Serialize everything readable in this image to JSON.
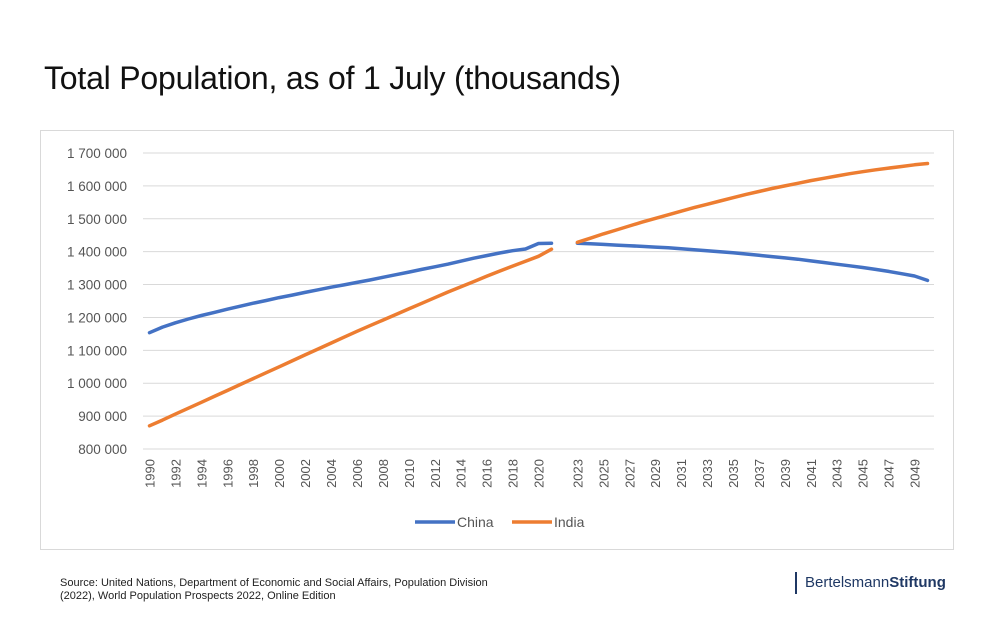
{
  "title": "Total Population, as of 1 July (thousands)",
  "source": {
    "line1": "Source: United Nations, Department of Economic and Social Affairs, Population Division",
    "line2": "(2022), World Population Prospects 2022, Online Edition"
  },
  "brand": {
    "part1": "Bertelsmann",
    "part2": "Stiftung"
  },
  "chart_data": {
    "type": "line",
    "title": "Total Population, as of 1 July (thousands)",
    "xlabel": "",
    "ylabel": "",
    "ylim": [
      800000,
      1700000
    ],
    "yticks": [
      800000,
      900000,
      1000000,
      1100000,
      1200000,
      1300000,
      1400000,
      1500000,
      1600000,
      1700000
    ],
    "ytick_labels": [
      "800 000",
      "900 000",
      "1 000 000",
      "1 100 000",
      "1 200 000",
      "1 300 000",
      "1 400 000",
      "1 500 000",
      "1 600 000",
      "1 700 000"
    ],
    "categories": [
      "1990",
      "1991",
      "1992",
      "1993",
      "1994",
      "1995",
      "1996",
      "1997",
      "1998",
      "1999",
      "2000",
      "2001",
      "2002",
      "2003",
      "2004",
      "2005",
      "2006",
      "2007",
      "2008",
      "2009",
      "2010",
      "2011",
      "2012",
      "2013",
      "2014",
      "2015",
      "2016",
      "2017",
      "2018",
      "2019",
      "2020",
      "2021",
      "2022",
      "2023",
      "2024",
      "2025",
      "2026",
      "2027",
      "2028",
      "2029",
      "2030",
      "2031",
      "2032",
      "2033",
      "2034",
      "2035",
      "2036",
      "2037",
      "2038",
      "2039",
      "2040",
      "2041",
      "2042",
      "2043",
      "2044",
      "2045",
      "2046",
      "2047",
      "2048",
      "2049",
      "2050"
    ],
    "xtick_labels": [
      "1990",
      "1992",
      "1994",
      "1996",
      "1998",
      "2000",
      "2002",
      "2004",
      "2006",
      "2008",
      "2010",
      "2012",
      "2014",
      "2016",
      "2018",
      "2020",
      "2023",
      "2025",
      "2027",
      "2029",
      "2031",
      "2033",
      "2035",
      "2037",
      "2039",
      "2041",
      "2043",
      "2045",
      "2047",
      "2049"
    ],
    "series": [
      {
        "name": "China",
        "color": "#4472c4",
        "values": [
          1153704,
          1170626,
          1183813,
          1195131,
          1206001,
          1215414,
          1225083,
          1234297,
          1243389,
          1251581,
          1260200,
          1268000,
          1276000,
          1284000,
          1292000,
          1299000,
          1306500,
          1314000,
          1322000,
          1330000,
          1338000,
          1346000,
          1354000,
          1362000,
          1371000,
          1380000,
          1388000,
          1396000,
          1403000,
          1408000,
          1424930,
          1425893,
          null,
          1425671,
          1424000,
          1422000,
          1420000,
          1418000,
          1416000,
          1414000,
          1412000,
          1409000,
          1406000,
          1403000,
          1400000,
          1397000,
          1393000,
          1389000,
          1385000,
          1381000,
          1377000,
          1372000,
          1367000,
          1362000,
          1357000,
          1352000,
          1346000,
          1340000,
          1333000,
          1326000,
          1312636
        ]
      },
      {
        "name": "India",
        "color": "#ed7d31",
        "values": [
          870452,
          888000,
          906000,
          924000,
          942000,
          960000,
          978000,
          996000,
          1014000,
          1032000,
          1050000,
          1068000,
          1086000,
          1104000,
          1122000,
          1140000,
          1158000,
          1175000,
          1192000,
          1209000,
          1226000,
          1243000,
          1260000,
          1277000,
          1293000,
          1309000,
          1325000,
          1341000,
          1356000,
          1371000,
          1386000,
          1407564,
          null,
          1428628,
          1441000,
          1454000,
          1466000,
          1478000,
          1490000,
          1501000,
          1512000,
          1523000,
          1534000,
          1544000,
          1554000,
          1564000,
          1574000,
          1583000,
          1592000,
          1600000,
          1608000,
          1616000,
          1623000,
          1630000,
          1637000,
          1643000,
          1649000,
          1654000,
          1659000,
          1664000,
          1668000
        ]
      }
    ],
    "legend": "bottom"
  }
}
